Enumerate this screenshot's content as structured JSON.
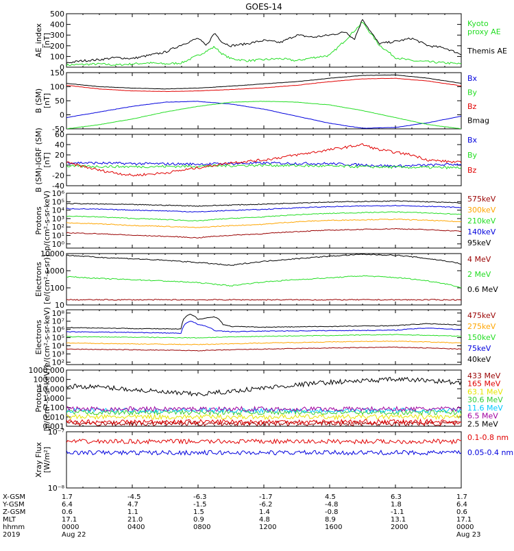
{
  "title": "GOES-14",
  "colors": {
    "black": "#000000",
    "red": "#e00000",
    "green": "#22dd22",
    "blue": "#0000dd",
    "orange": "#ffa500",
    "darkred": "#990000",
    "yellow": "#e6e600",
    "cyan": "#00c8ff",
    "purple": "#a000a0",
    "limegreen": "#33cc33"
  },
  "chart_data": [
    {
      "id": "ae",
      "type": "line",
      "title": "GOES-14",
      "ylabel": "AE_index [nT]",
      "yscale": "linear",
      "ylim": [
        0,
        500
      ],
      "yticks": [
        "0",
        "100",
        "200",
        "300",
        "400",
        "500"
      ],
      "series": [
        {
          "name": "Kyoto proxy AE",
          "legend": [
            "Kyoto",
            "proxy AE"
          ],
          "color": "green",
          "x": [
            0,
            2,
            3,
            5,
            6,
            7,
            8,
            9,
            9.5,
            10,
            11,
            12,
            13,
            14,
            15,
            16,
            17,
            18,
            19,
            20,
            21,
            22,
            23,
            24
          ],
          "y": [
            20,
            30,
            20,
            40,
            30,
            40,
            110,
            190,
            120,
            80,
            60,
            70,
            80,
            60,
            90,
            110,
            260,
            420,
            210,
            90,
            60,
            50,
            40,
            30
          ]
        },
        {
          "name": "Themis AE",
          "legend": [
            "Themis AE"
          ],
          "color": "black",
          "x": [
            0,
            1,
            2,
            3,
            4,
            5,
            6,
            7,
            8,
            8.5,
            9,
            9.5,
            10,
            11,
            12,
            13,
            14,
            15,
            16,
            17,
            17.5,
            18,
            18.5,
            19,
            20,
            21,
            22,
            23,
            24
          ],
          "y": [
            40,
            60,
            70,
            90,
            80,
            110,
            140,
            210,
            270,
            200,
            320,
            230,
            200,
            220,
            250,
            230,
            300,
            280,
            300,
            330,
            260,
            450,
            330,
            220,
            240,
            270,
            200,
            180,
            120
          ]
        }
      ]
    },
    {
      "id": "bsm",
      "type": "line",
      "ylabel": "B (SM) [nT]",
      "yscale": "linear",
      "ylim": [
        -50,
        150
      ],
      "yticks": [
        "-50",
        "0",
        "50",
        "100",
        "150"
      ],
      "series": [
        {
          "name": "Bx",
          "color": "blue",
          "x": [
            0,
            2,
            4,
            6,
            8,
            10,
            12,
            14,
            16,
            18,
            20,
            22,
            24
          ],
          "y": [
            -10,
            10,
            30,
            45,
            48,
            38,
            20,
            -5,
            -30,
            -48,
            -45,
            -28,
            -5
          ]
        },
        {
          "name": "By",
          "color": "green",
          "x": [
            0,
            2,
            4,
            6,
            8,
            10,
            12,
            14,
            16,
            18,
            20,
            22,
            24
          ],
          "y": [
            -50,
            -35,
            -15,
            10,
            30,
            45,
            48,
            45,
            35,
            15,
            -10,
            -35,
            -50
          ]
        },
        {
          "name": "Bz",
          "color": "red",
          "x": [
            0,
            2,
            4,
            6,
            8,
            10,
            12,
            14,
            16,
            18,
            20,
            22,
            24
          ],
          "y": [
            105,
            92,
            85,
            83,
            85,
            90,
            96,
            105,
            118,
            128,
            130,
            120,
            103
          ]
        },
        {
          "name": "Bmag",
          "color": "black",
          "x": [
            0,
            2,
            4,
            6,
            8,
            10,
            12,
            14,
            16,
            18,
            20,
            22,
            24
          ],
          "y": [
            112,
            100,
            95,
            92,
            95,
            102,
            110,
            118,
            130,
            140,
            142,
            130,
            112
          ]
        }
      ]
    },
    {
      "id": "bdiff",
      "type": "line",
      "ylabel": "B (SM)-IGRF (SM) [nT]",
      "yscale": "linear",
      "ylim": [
        -40,
        60
      ],
      "yticks": [
        "-40",
        "-20",
        "0",
        "20",
        "40",
        "60"
      ],
      "series": [
        {
          "name": "Bx",
          "color": "blue",
          "x": [
            0,
            4,
            8,
            12,
            16,
            20,
            24
          ],
          "y": [
            5,
            3,
            2,
            4,
            3,
            -2,
            2
          ]
        },
        {
          "name": "By",
          "color": "green",
          "x": [
            0,
            4,
            8,
            12,
            16,
            20,
            24
          ],
          "y": [
            -2,
            -3,
            -2,
            0,
            -2,
            -4,
            -5
          ]
        },
        {
          "name": "Bz",
          "color": "red",
          "x": [
            0,
            2,
            4,
            6,
            8,
            10,
            12,
            14,
            16,
            18,
            19,
            20,
            21,
            22,
            24
          ],
          "y": [
            5,
            -10,
            -20,
            -15,
            -5,
            5,
            10,
            20,
            30,
            40,
            30,
            25,
            20,
            10,
            5
          ]
        }
      ]
    },
    {
      "id": "protons",
      "type": "line",
      "ylabel": "Protons p/(cm²-s-sr-keV)",
      "yscale": "log",
      "ylim": [
        0.3,
        1000000
      ],
      "yticks": [
        "10⁰",
        "10¹",
        "10²",
        "10³",
        "10⁴",
        "10⁵",
        "10⁶"
      ],
      "series": [
        {
          "name": "575keV",
          "color": "darkred",
          "x": [
            0,
            4,
            8,
            12,
            16,
            20,
            24
          ],
          "y": [
            20,
            10,
            5,
            15,
            40,
            60,
            30
          ]
        },
        {
          "name": "300keV",
          "color": "orange",
          "x": [
            0,
            4,
            8,
            12,
            16,
            20,
            24
          ],
          "y": [
            300,
            150,
            80,
            200,
            600,
            800,
            400
          ]
        },
        {
          "name": "210keV",
          "color": "green",
          "x": [
            0,
            4,
            8,
            12,
            16,
            20,
            24
          ],
          "y": [
            2000,
            1000,
            500,
            1500,
            4000,
            6000,
            3000
          ]
        },
        {
          "name": "140keV",
          "color": "blue",
          "x": [
            0,
            4,
            8,
            12,
            16,
            20,
            24
          ],
          "y": [
            15000,
            10000,
            6000,
            12000,
            25000,
            35000,
            20000
          ]
        },
        {
          "name": "95keV",
          "color": "black",
          "x": [
            0,
            4,
            8,
            12,
            16,
            20,
            24
          ],
          "y": [
            60000,
            45000,
            30000,
            50000,
            90000,
            120000,
            70000
          ]
        }
      ]
    },
    {
      "id": "electrons_hi",
      "type": "line",
      "ylabel": "Electrons [e/(cm²-s-sr)]",
      "yscale": "log",
      "ylim": [
        10,
        10000
      ],
      "yticks": [
        "10",
        "100",
        "1000",
        "10000"
      ],
      "series": [
        {
          "name": "4 MeV",
          "color": "darkred",
          "x": [
            0,
            24
          ],
          "y": [
            20,
            20
          ]
        },
        {
          "name": "2 MeV",
          "color": "green",
          "x": [
            0,
            2,
            4,
            6,
            8,
            10,
            12,
            14,
            16,
            18,
            20,
            22,
            24
          ],
          "y": [
            450,
            350,
            300,
            250,
            200,
            130,
            220,
            300,
            380,
            500,
            400,
            250,
            100
          ]
        },
        {
          "name": "0.6 MeV",
          "color": "black",
          "x": [
            0,
            2,
            4,
            6,
            8,
            10,
            12,
            14,
            16,
            18,
            20,
            22,
            24
          ],
          "y": [
            8000,
            6000,
            5000,
            4000,
            3000,
            2000,
            3500,
            5000,
            7000,
            9000,
            8000,
            5000,
            2500
          ]
        }
      ]
    },
    {
      "id": "electrons_lo",
      "type": "line",
      "ylabel": "Electrons e/(cm²-s-sr-keV)",
      "yscale": "log",
      "ylim": [
        50,
        100000000
      ],
      "yticks": [
        "10²",
        "10³",
        "10⁴",
        "10⁵",
        "10⁶",
        "10⁷",
        "10⁸"
      ],
      "series": [
        {
          "name": "475keV",
          "color": "darkred",
          "x": [
            0,
            4,
            8,
            12,
            16,
            20,
            24
          ],
          "y": [
            3000,
            2500,
            2000,
            3000,
            4000,
            5000,
            3000
          ]
        },
        {
          "name": "275keV",
          "color": "orange",
          "x": [
            0,
            4,
            8,
            12,
            16,
            20,
            24
          ],
          "y": [
            15000,
            12000,
            10000,
            15000,
            20000,
            25000,
            15000
          ]
        },
        {
          "name": "150keV",
          "color": "green",
          "x": [
            0,
            4,
            8,
            12,
            16,
            20,
            24
          ],
          "y": [
            80000,
            70000,
            60000,
            90000,
            110000,
            140000,
            90000
          ]
        },
        {
          "name": "75keV",
          "color": "blue",
          "x": [
            0,
            4,
            7,
            7.5,
            8,
            9,
            10,
            12,
            16,
            20,
            22,
            24
          ],
          "y": [
            300000,
            250000,
            200000,
            5000000,
            2000000,
            400000,
            300000,
            350000,
            400000,
            450000,
            800000,
            500000
          ]
        },
        {
          "name": "40keV",
          "color": "black",
          "x": [
            0,
            4,
            7,
            7.5,
            8,
            9,
            9.5,
            10,
            12,
            16,
            20,
            22,
            24
          ],
          "y": [
            900000,
            700000,
            600000,
            30000000,
            8000000,
            15000000,
            2000000,
            1200000,
            1000000,
            1200000,
            1500000,
            2500000,
            1800000
          ]
        }
      ]
    },
    {
      "id": "protons_hi",
      "type": "line",
      "ylabel": "Protons [p/(cm²-s-sr-keV)]",
      "yscale": "log",
      "ylim": [
        0.001,
        1000
      ],
      "yticks": [
        "0.001",
        "0.010",
        "0.100",
        "1.000",
        "10.000",
        "100.000",
        "1000.000"
      ],
      "series": [
        {
          "name": "433 MeV",
          "color": "darkred",
          "x": [
            0,
            24
          ],
          "y": [
            0.002,
            0.002
          ]
        },
        {
          "name": "165 MeV",
          "color": "red",
          "x": [
            0,
            24
          ],
          "y": [
            0.003,
            0.003
          ]
        },
        {
          "name": "63.1 MeV",
          "color": "yellow",
          "x": [
            0,
            24
          ],
          "y": [
            0.01,
            0.01
          ]
        },
        {
          "name": "30.6 MeV",
          "color": "limegreen",
          "x": [
            0,
            24
          ],
          "y": [
            0.03,
            0.03
          ]
        },
        {
          "name": "11.6 MeV",
          "color": "cyan",
          "x": [
            0,
            24
          ],
          "y": [
            0.05,
            0.05
          ]
        },
        {
          "name": "6.5 MeV",
          "color": "purple",
          "x": [
            0,
            24
          ],
          "y": [
            0.07,
            0.07
          ]
        },
        {
          "name": "2.5 MeV",
          "color": "black",
          "x": [
            0,
            2,
            4,
            6,
            8,
            10,
            12,
            14,
            16,
            18,
            20,
            22,
            24
          ],
          "y": [
            20,
            15,
            8,
            4,
            2.5,
            5,
            12,
            25,
            50,
            70,
            100,
            80,
            40
          ]
        }
      ]
    },
    {
      "id": "xray",
      "type": "line",
      "ylabel": "Xray Flux [W/m²]",
      "yscale": "log",
      "ylim": [
        1e-09,
        1e-07
      ],
      "yticks": [
        "10⁻⁸",
        "10⁻⁷"
      ],
      "series": [
        {
          "name": "0.1-0.8 nm",
          "color": "red",
          "x": [
            0,
            24
          ],
          "y": [
            4.5e-08,
            4.5e-08
          ]
        },
        {
          "name": "0.05-0.4 nm",
          "color": "blue",
          "x": [
            0,
            24
          ],
          "y": [
            1.8e-08,
            1.8e-08
          ]
        }
      ]
    }
  ],
  "ephemeris": {
    "labels": [
      "X-GSM",
      "Y-GSM",
      "Z-GSM",
      "MLT",
      "hhmm",
      "2019"
    ],
    "columns": [
      [
        "1.7",
        "6.4",
        "0.6",
        "17.1",
        "0000",
        "Aug 22"
      ],
      [
        "-4.5",
        "4.7",
        "1.1",
        "21.0",
        "0400",
        ""
      ],
      [
        "-6.3",
        "-1.5",
        "1.5",
        "0.9",
        "0800",
        ""
      ],
      [
        "-1.7",
        "-6.2",
        "1.4",
        "4.8",
        "1200",
        ""
      ],
      [
        "4.5",
        "-4.8",
        "-0.8",
        "8.9",
        "1600",
        ""
      ],
      [
        "6.3",
        "1.8",
        "-1.1",
        "13.1",
        "2000",
        ""
      ],
      [
        "1.7",
        "6.4",
        "0.6",
        "17.1",
        "0000",
        "Aug 23"
      ]
    ]
  }
}
